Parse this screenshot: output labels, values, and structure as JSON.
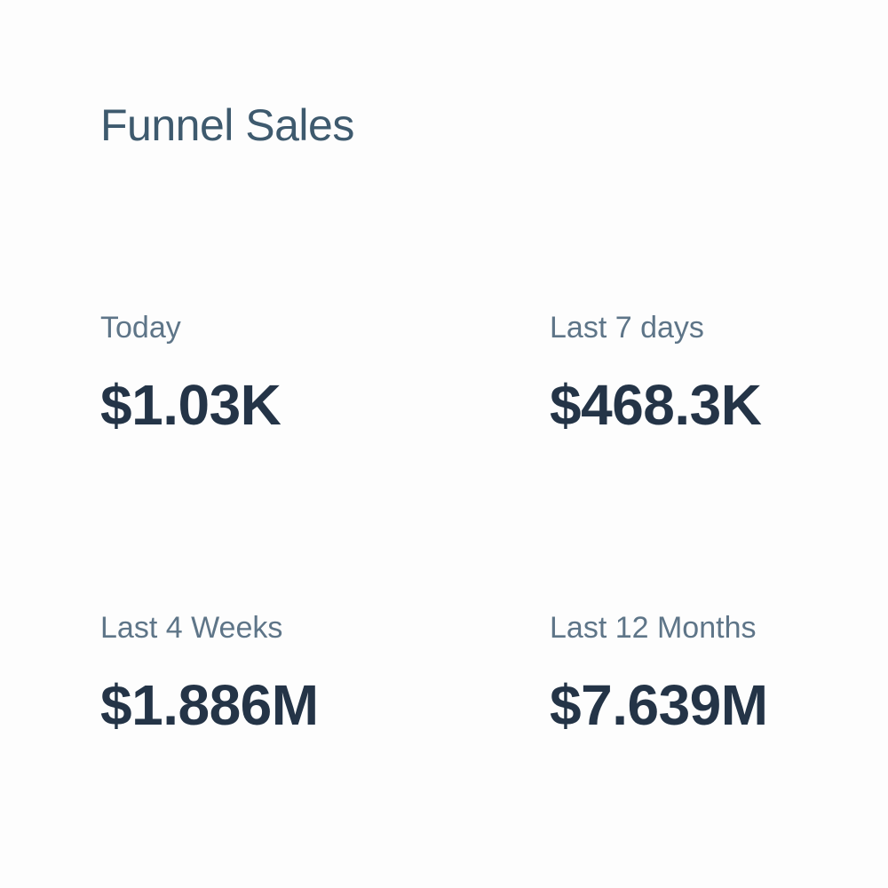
{
  "widget": {
    "title": "Funnel Sales",
    "metrics": [
      {
        "label": "Today",
        "value": "$1.03K"
      },
      {
        "label": "Last 7 days",
        "value": "$468.3K"
      },
      {
        "label": "Last 4 Weeks",
        "value": "$1.886M"
      },
      {
        "label": "Last 12 Months",
        "value": "$7.639M"
      }
    ]
  }
}
